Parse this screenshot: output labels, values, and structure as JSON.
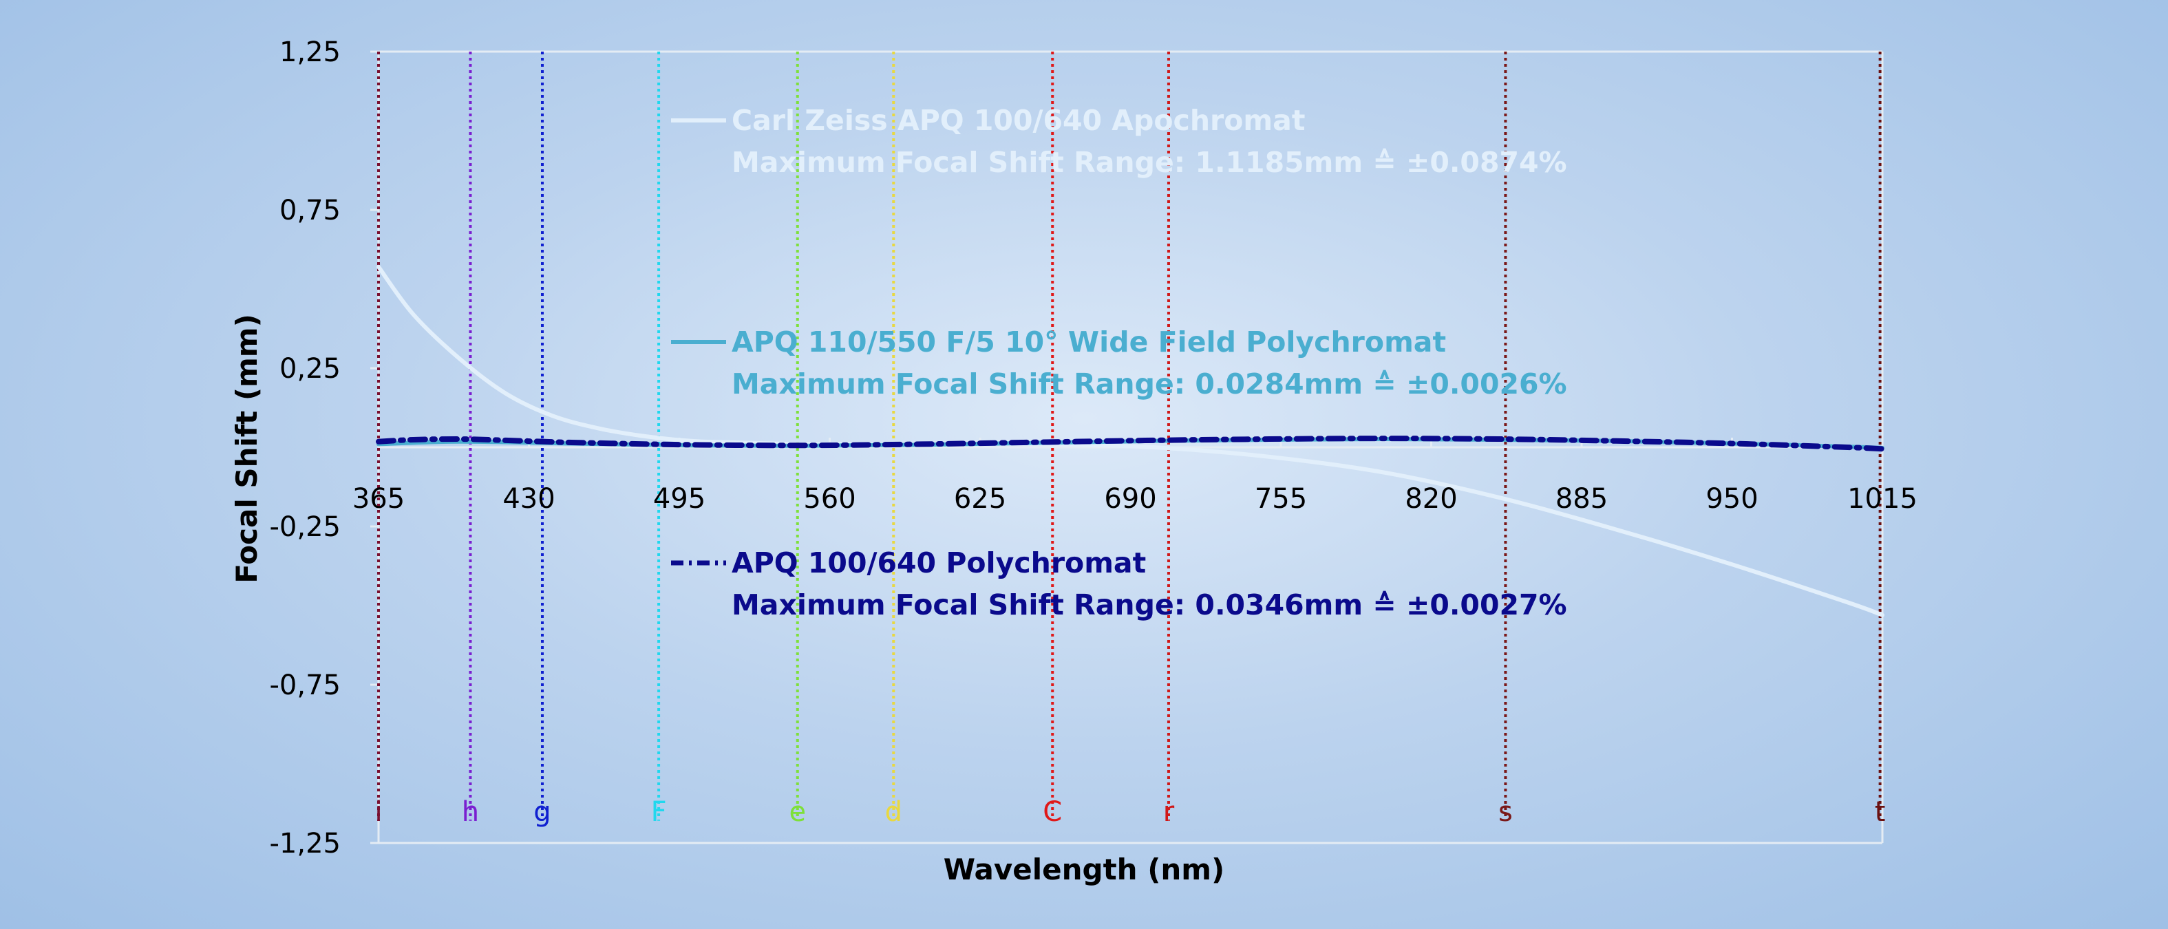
{
  "chart_data": {
    "type": "line",
    "xlabel": "Wavelength (nm)",
    "ylabel": "Focal Shift (mm)",
    "xlim": [
      365,
      1015
    ],
    "ylim": [
      -1.25,
      1.25
    ],
    "x_ticks": [
      "365",
      "430",
      "495",
      "560",
      "625",
      "690",
      "755",
      "820",
      "885",
      "950",
      "1015"
    ],
    "y_ticks": [
      "1,25",
      "0,75",
      "0,25",
      "-0,25",
      "-0,75",
      "-1,25"
    ],
    "y_tick_values": [
      1.25,
      0.75,
      0.25,
      -0.25,
      -0.75,
      -1.25
    ],
    "grid": false,
    "legend_position": "inside",
    "series": [
      {
        "name": "Carl Zeiss APQ 100/640 Apochromat",
        "note": "Maximum Focal Shift Range: 1.1185mm ≙ ±0.0874%",
        "color": "#e2effb",
        "style": "solid",
        "x": [
          365,
          380,
          400,
          420,
          440,
          460,
          480,
          500,
          520,
          550,
          600,
          650,
          700,
          750,
          800,
          850,
          900,
          950,
          1000,
          1015
        ],
        "y": [
          0.57,
          0.42,
          0.28,
          0.17,
          0.1,
          0.06,
          0.035,
          0.02,
          0.015,
          0.01,
          0.01,
          0.01,
          0.0,
          -0.03,
          -0.08,
          -0.16,
          -0.26,
          -0.37,
          -0.49,
          -0.53
        ]
      },
      {
        "name": "APQ 110/550 F/5 10° Wide Field Polychromat",
        "note": "Maximum Focal Shift Range: 0.0284mm ≙ ±0.0026%",
        "color": "#4aaed0",
        "style": "solid",
        "x": [
          365,
          400,
          450,
          500,
          550,
          600,
          650,
          700,
          750,
          800,
          850,
          900,
          950,
          1000,
          1015
        ],
        "y": [
          0.01,
          0.018,
          0.012,
          0.006,
          0.005,
          0.008,
          0.014,
          0.02,
          0.024,
          0.026,
          0.024,
          0.02,
          0.012,
          0.002,
          -0.002
        ]
      },
      {
        "name": "APQ 100/640 Polychromat",
        "note": "Maximum Focal Shift Range: 0.0346mm ≙ ±0.0027%",
        "color": "#0a0a8c",
        "style": "dash-dot",
        "x": [
          365,
          380,
          400,
          420,
          450,
          500,
          550,
          600,
          650,
          700,
          750,
          800,
          850,
          900,
          950,
          1000,
          1015
        ],
        "y": [
          0.018,
          0.024,
          0.026,
          0.022,
          0.015,
          0.008,
          0.006,
          0.01,
          0.016,
          0.022,
          0.026,
          0.028,
          0.026,
          0.02,
          0.012,
          0.0,
          -0.005
        ]
      }
    ],
    "fraunhofer_lines": [
      {
        "letter": "i",
        "x": 365.0,
        "color": "#7a1030"
      },
      {
        "letter": "h",
        "x": 404.7,
        "color": "#7a1fd0"
      },
      {
        "letter": "g",
        "x": 435.8,
        "color": "#1020d0"
      },
      {
        "letter": "F",
        "x": 486.1,
        "color": "#20d8ee"
      },
      {
        "letter": "e",
        "x": 546.1,
        "color": "#7ee03a"
      },
      {
        "letter": "d",
        "x": 587.6,
        "color": "#e8d840"
      },
      {
        "letter": "C",
        "x": 656.3,
        "color": "#e01818"
      },
      {
        "letter": "r",
        "x": 706.5,
        "color": "#d01818"
      },
      {
        "letter": "s",
        "x": 852.1,
        "color": "#7a1818"
      },
      {
        "letter": "t",
        "x": 1014.0,
        "color": "#6a1010"
      }
    ]
  }
}
